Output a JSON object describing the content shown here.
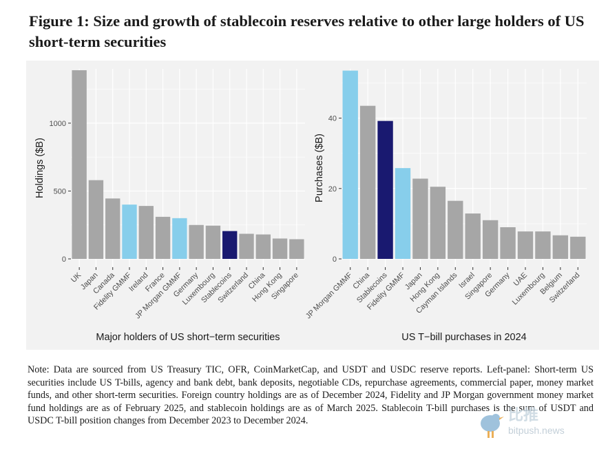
{
  "title": "Figure 1: Size and growth of stablecoin reserves relative to other large holders of US short-term securities",
  "note": "Note: Data are sourced from US Treasury TIC, OFR, CoinMarketCap, and USDT and USDC reserve reports. Left-panel: Short-term US securities include US T-bills, agency and bank debt, bank deposits, negotiable CDs, repurchase agreements, commercial paper, money market funds, and other short-term securities. Foreign country holdings are as of December 2024, Fidelity and JP Morgan government money market fund holdings are as of February 2025, and stablecoin holdings are as of March 2025. Stablecoin T-bill purchases is the sum of USDT and USDC T-bill position changes from December 2023 to December 2024.",
  "watermark": {
    "logo_text": "比推",
    "url_text": "bitpush.news"
  },
  "colors": {
    "default": "#a6a6a6",
    "mmf": "#87ceeb",
    "stablecoin": "#191970",
    "panel_bg": "#f2f2f2",
    "grid": "#ffffff"
  },
  "chart_data": [
    {
      "type": "bar",
      "xlabel": "Major holders of US short−term securities",
      "ylabel": "Holdings ($B)",
      "ylim": [
        0,
        1400
      ],
      "yticks": [
        0,
        500,
        1000
      ],
      "grid": true,
      "categories": [
        "UK",
        "Japan",
        "Canada",
        "Fidelity GMMF",
        "Ireland",
        "France",
        "JP Morgan GMMF",
        "Germany",
        "Luxembourg",
        "Stablecoins",
        "Switzerland",
        "China",
        "Hong Kong",
        "Singapore"
      ],
      "values": [
        1390,
        580,
        445,
        400,
        390,
        310,
        300,
        250,
        245,
        205,
        185,
        180,
        150,
        145
      ],
      "highlight": [
        "default",
        "default",
        "default",
        "mmf",
        "default",
        "default",
        "mmf",
        "default",
        "default",
        "stablecoin",
        "default",
        "default",
        "default",
        "default"
      ]
    },
    {
      "type": "bar",
      "xlabel": "US T−bill purchases in 2024",
      "ylabel": "Purchases ($B)",
      "ylim": [
        0,
        54
      ],
      "yticks": [
        0,
        20,
        40
      ],
      "grid": true,
      "categories": [
        "JP Morgan GMMF",
        "China",
        "Stablecoins",
        "Fidelity GMMF",
        "Japan",
        "Hong Kong",
        "Cayman Islands",
        "Israel",
        "Singapore",
        "Germany",
        "UAE",
        "Luxembourg",
        "Belgium",
        "Switzerland"
      ],
      "values": [
        53.5,
        43.5,
        39.2,
        25.8,
        22.8,
        20.5,
        16.5,
        12.9,
        11.0,
        9.0,
        7.8,
        7.8,
        6.7,
        6.3
      ],
      "highlight": [
        "mmf",
        "default",
        "stablecoin",
        "mmf",
        "default",
        "default",
        "default",
        "default",
        "default",
        "default",
        "default",
        "default",
        "default",
        "default"
      ]
    }
  ]
}
